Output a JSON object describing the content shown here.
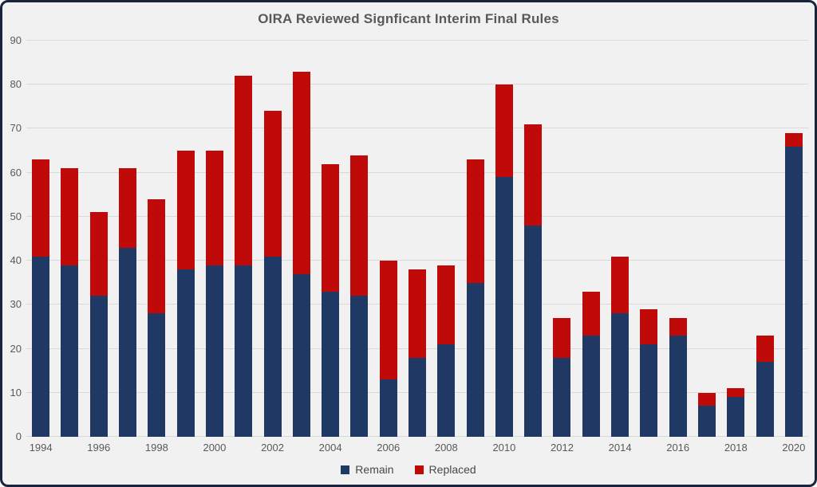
{
  "chart_data": {
    "type": "bar",
    "stacked": true,
    "title": "OIRA Reviewed Signficant Interim Final Rules",
    "categories": [
      1994,
      1995,
      1996,
      1997,
      1998,
      1999,
      2000,
      2001,
      2002,
      2003,
      2004,
      2005,
      2006,
      2007,
      2008,
      2009,
      2010,
      2011,
      2012,
      2013,
      2014,
      2015,
      2016,
      2017,
      2018,
      2019,
      2020
    ],
    "series": [
      {
        "name": "Remain",
        "color": "#1f3864",
        "values": [
          41,
          39,
          32,
          43,
          28,
          38,
          39,
          39,
          41,
          37,
          33,
          32,
          13,
          18,
          21,
          35,
          59,
          48,
          18,
          23,
          28,
          21,
          23,
          7,
          9,
          17,
          66
        ]
      },
      {
        "name": "Replaced",
        "color": "#c00909",
        "values": [
          22,
          22,
          19,
          18,
          26,
          27,
          26,
          43,
          33,
          46,
          29,
          32,
          27,
          20,
          18,
          28,
          21,
          23,
          9,
          10,
          13,
          8,
          4,
          3,
          2,
          6,
          3
        ]
      }
    ],
    "totals": [
      63,
      61,
      51,
      61,
      54,
      65,
      65,
      82,
      74,
      83,
      62,
      64,
      40,
      38,
      39,
      63,
      80,
      71,
      27,
      33,
      41,
      29,
      27,
      10,
      11,
      23,
      69
    ],
    "xlabel": "",
    "ylabel": "",
    "ylim": [
      0,
      90
    ],
    "y_ticks": [
      0,
      10,
      20,
      30,
      40,
      50,
      60,
      70,
      80,
      90
    ],
    "x_tick_labels": [
      "1994",
      "1996",
      "1998",
      "2000",
      "2002",
      "2004",
      "2006",
      "2008",
      "2010",
      "2012",
      "2014",
      "2016",
      "2018",
      "2020"
    ],
    "grid": true,
    "legend_position": "bottom",
    "colors": {
      "background": "#f1f1f1",
      "frame_border": "#18233e",
      "gridline": "#d9d9d9",
      "text": "#595959"
    }
  }
}
